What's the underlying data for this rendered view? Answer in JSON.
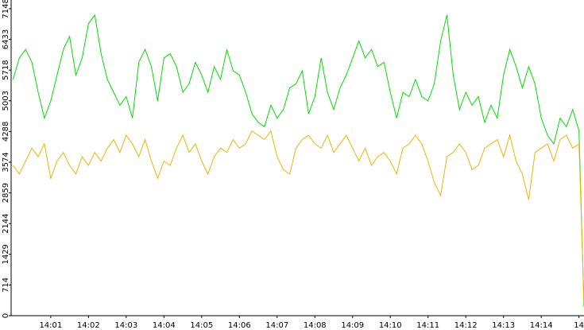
{
  "chart_data": {
    "type": "line",
    "x": [
      0,
      10,
      20,
      30,
      40,
      50,
      60,
      70,
      80,
      90,
      100,
      110,
      120,
      130,
      140,
      150,
      160,
      170,
      180,
      190,
      200,
      210,
      220,
      230,
      240,
      250,
      260,
      270,
      280,
      290,
      300,
      310,
      320,
      330,
      340,
      350,
      360,
      370,
      380,
      390,
      400,
      410,
      420,
      430,
      440,
      450,
      460,
      470,
      480,
      490,
      500,
      510,
      520,
      530,
      540,
      550,
      560,
      570,
      580,
      590,
      600,
      610,
      620,
      630,
      640,
      650,
      660,
      670,
      680,
      690,
      700,
      710,
      720,
      730,
      740,
      750,
      760,
      770,
      780,
      790,
      800,
      810,
      820,
      830,
      840,
      850,
      860,
      870,
      880,
      890,
      900,
      908
    ],
    "series": [
      {
        "color": "#00e000",
        "values": [
          5500,
          6000,
          6200,
          5900,
          5200,
          4600,
          5000,
          5600,
          6200,
          6500,
          5600,
          6000,
          6800,
          7000,
          6100,
          5500,
          5200,
          4900,
          5100,
          4600,
          5900,
          6200,
          5800,
          5000,
          6000,
          6100,
          5800,
          5200,
          5400,
          5900,
          5600,
          5200,
          5800,
          5500,
          6200,
          5700,
          5600,
          5200,
          4700,
          4500,
          4400,
          4900,
          4600,
          4800,
          5300,
          5400,
          5700,
          4700,
          5100,
          6000,
          5200,
          4800,
          5300,
          5600,
          6000,
          6400,
          6000,
          6200,
          5800,
          5900,
          5200,
          4600,
          5200,
          5100,
          5500,
          5100,
          5000,
          5400,
          6400,
          7000,
          5600,
          4800,
          5200,
          4900,
          5100,
          4500,
          4900,
          4600,
          5600,
          6200,
          5800,
          5300,
          5800,
          5400,
          4600,
          4200,
          4000,
          4600,
          4400,
          4800,
          4300,
          200
        ]
      },
      {
        "color": "#f0b400",
        "values": [
          3500,
          3300,
          3600,
          3900,
          3700,
          4000,
          3200,
          3600,
          3800,
          3500,
          3300,
          3700,
          3500,
          3800,
          3600,
          3900,
          4100,
          3800,
          4200,
          4000,
          3700,
          4100,
          3600,
          3200,
          3600,
          3500,
          3900,
          4200,
          3800,
          4000,
          3600,
          3300,
          3700,
          3900,
          3800,
          4100,
          3900,
          4000,
          4300,
          4200,
          4100,
          4300,
          3700,
          3400,
          3300,
          3900,
          4100,
          4200,
          4000,
          3900,
          4200,
          3800,
          4000,
          4200,
          3900,
          3600,
          3900,
          3500,
          3700,
          3800,
          3600,
          3300,
          3900,
          4000,
          4200,
          4000,
          3600,
          3100,
          2800,
          3700,
          3800,
          4000,
          3800,
          3400,
          3500,
          3900,
          4000,
          4100,
          3700,
          4200,
          3600,
          3300,
          2700,
          3800,
          3900,
          4000,
          3600,
          4100,
          4200,
          3900,
          4000,
          300
        ]
      }
    ],
    "xlim": [
      -3,
      908
    ],
    "xticks": [
      {
        "value": 60,
        "label": "14:01"
      },
      {
        "value": 120,
        "label": "14:02"
      },
      {
        "value": 180,
        "label": "14:03"
      },
      {
        "value": 240,
        "label": "14:04"
      },
      {
        "value": 300,
        "label": "14:05"
      },
      {
        "value": 360,
        "label": "14:06"
      },
      {
        "value": 420,
        "label": "14:07"
      },
      {
        "value": 480,
        "label": "14:08"
      },
      {
        "value": 540,
        "label": "14:09"
      },
      {
        "value": 600,
        "label": "14:10"
      },
      {
        "value": 660,
        "label": "14:11"
      },
      {
        "value": 720,
        "label": "14:12"
      },
      {
        "value": 780,
        "label": "14:13"
      },
      {
        "value": 840,
        "label": "14:14"
      },
      {
        "value": 900,
        "label": "14"
      }
    ],
    "ylim": [
      0,
      7350
    ],
    "yticks": [
      0,
      714,
      1429,
      2144,
      2859,
      3574,
      4288,
      5003,
      5718,
      6433,
      7148
    ]
  }
}
